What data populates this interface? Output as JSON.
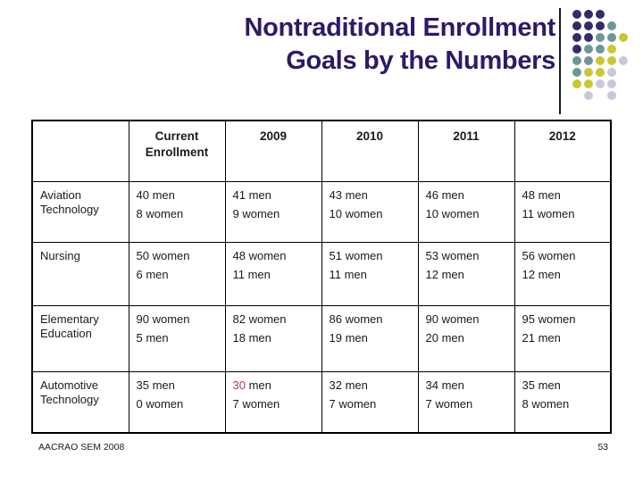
{
  "colors": {
    "title": "#2E1A66",
    "text": "#1A1A1A",
    "highlight_red": "#B03C3C",
    "dot_purple": "#372A6B",
    "dot_teal": "#6E9696",
    "dot_yellow": "#C8C832",
    "dot_gray": "#C8C8DC"
  },
  "title": {
    "line1": "Nontraditional Enrollment",
    "line2": "Goals by the Numbers"
  },
  "decoration": {
    "dot_grid": [
      "PPP..",
      "PPPT.",
      "PPTTY",
      "PTTY.",
      "TTYYG",
      "TYYG.",
      "YYGG.",
      ".G.G."
    ],
    "legend": {
      "P": "dot_purple",
      "T": "dot_teal",
      "Y": "dot_yellow",
      "G": "dot_gray"
    }
  },
  "table": {
    "columns": [
      "",
      "Current Enrollment",
      "2009",
      "2010",
      "2011",
      "2012"
    ],
    "rows": [
      {
        "label": "Aviation Technology",
        "cells": [
          [
            "40 men",
            "8 women"
          ],
          [
            "41 men",
            "9 women"
          ],
          [
            "43 men",
            "10 women"
          ],
          [
            "46 men",
            "10 women"
          ],
          [
            "48 men",
            "11 women"
          ]
        ]
      },
      {
        "label": "Nursing",
        "cells": [
          [
            "50 women",
            "6 men"
          ],
          [
            "48 women",
            "11 men"
          ],
          [
            "51 women",
            "11 men"
          ],
          [
            "53 women",
            "12 men"
          ],
          [
            "56 women",
            "12 men"
          ]
        ]
      },
      {
        "label": "Elementary Education",
        "cells": [
          [
            "90 women",
            "5 men"
          ],
          [
            "82 women",
            "18 men"
          ],
          [
            "86 women",
            "19 men"
          ],
          [
            "90 women",
            "20 men"
          ],
          [
            "95 women",
            "21 men"
          ]
        ]
      },
      {
        "label": "Automotive Technology",
        "cells": [
          [
            "35 men",
            "0 women"
          ],
          [
            "30 men",
            "7 women"
          ],
          [
            "32 men",
            "7 women"
          ],
          [
            "34 men",
            "7 women"
          ],
          [
            "35 men",
            "8 women"
          ]
        ]
      }
    ],
    "highlight": {
      "value": "30",
      "suffix": " men",
      "row": "Automotive Technology",
      "column": "2009"
    }
  },
  "footer": {
    "left": "AACRAO SEM 2008",
    "page_number": "53"
  }
}
